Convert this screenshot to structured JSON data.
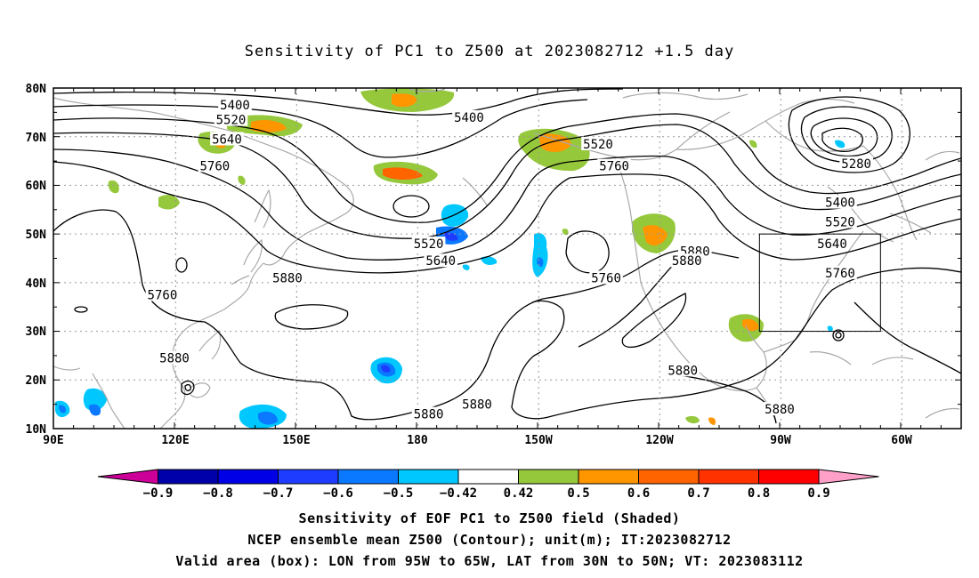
{
  "title": "Sensitivity of PC1 to Z500 at 2023082712 +1.5 day",
  "axes": {
    "lat_labels": [
      "80N",
      "70N",
      "60N",
      "50N",
      "40N",
      "30N",
      "20N",
      "10N"
    ],
    "lon_labels": [
      "90E",
      "120E",
      "150E",
      "180",
      "150W",
      "120W",
      "90W",
      "60W"
    ]
  },
  "contour_labels": [
    {
      "text": "5400",
      "lon": 135,
      "lat": 76.5
    },
    {
      "text": "5520",
      "lon": 134,
      "lat": 73.5
    },
    {
      "text": "5640",
      "lon": 133,
      "lat": 69.5
    },
    {
      "text": "5760",
      "lon": 130,
      "lat": 64
    },
    {
      "text": "5760",
      "lon": 117,
      "lat": 37.5
    },
    {
      "text": "5880",
      "lon": 120,
      "lat": 24.5
    },
    {
      "text": "5880",
      "lon": 148,
      "lat": 41
    },
    {
      "text": "5880",
      "lon": 183,
      "lat": 13
    },
    {
      "text": "5880",
      "lon": 195,
      "lat": 15
    },
    {
      "text": "5400",
      "lon": 193,
      "lat": 74
    },
    {
      "text": "5520",
      "lon": 183,
      "lat": 48
    },
    {
      "text": "5640",
      "lon": 186,
      "lat": 44.5
    },
    {
      "text": "5520",
      "lon": 225,
      "lat": 68.5
    },
    {
      "text": "5760",
      "lon": 229,
      "lat": 64
    },
    {
      "text": "5760",
      "lon": 227,
      "lat": 41
    },
    {
      "text": "5880",
      "lon": 249,
      "lat": 46.5
    },
    {
      "text": "5880",
      "lon": 247,
      "lat": 44.5
    },
    {
      "text": "5880",
      "lon": 246,
      "lat": 22
    },
    {
      "text": "5880",
      "lon": 270,
      "lat": 14
    },
    {
      "text": "5280",
      "lon": 289,
      "lat": 64.5
    },
    {
      "text": "5400",
      "lon": 285,
      "lat": 56.5
    },
    {
      "text": "5520",
      "lon": 285,
      "lat": 52.5
    },
    {
      "text": "5640",
      "lon": 283,
      "lat": 48
    },
    {
      "text": "5760",
      "lon": 285,
      "lat": 42
    }
  ],
  "valid_box": {
    "lon_min": 265,
    "lon_max": 295,
    "lat_min": 30,
    "lat_max": 50
  },
  "colorbar": {
    "labels": [
      "-0.9",
      "-0.8",
      "-0.7",
      "-0.6",
      "-0.5",
      "-0.42",
      "0.42",
      "0.5",
      "0.6",
      "0.7",
      "0.8",
      "0.9"
    ],
    "colors": [
      "#cc0099",
      "#0000aa",
      "#0000e6",
      "#1e3cff",
      "#0a78ff",
      "#00c8ff",
      "#ffffff",
      "#96c83c",
      "#ff9600",
      "#ff6400",
      "#ff3200",
      "#ff0000",
      "#ffa0c8"
    ]
  },
  "footer": {
    "line1": "Sensitivity of EOF PC1 to Z500 field (Shaded)",
    "line2": "NCEP ensemble mean Z500 (Contour); unit(m); IT:2023082712",
    "line3": "Valid area (box): LON from 95W to 65W, LAT from 30N to 50N; VT: 2023083112"
  }
}
